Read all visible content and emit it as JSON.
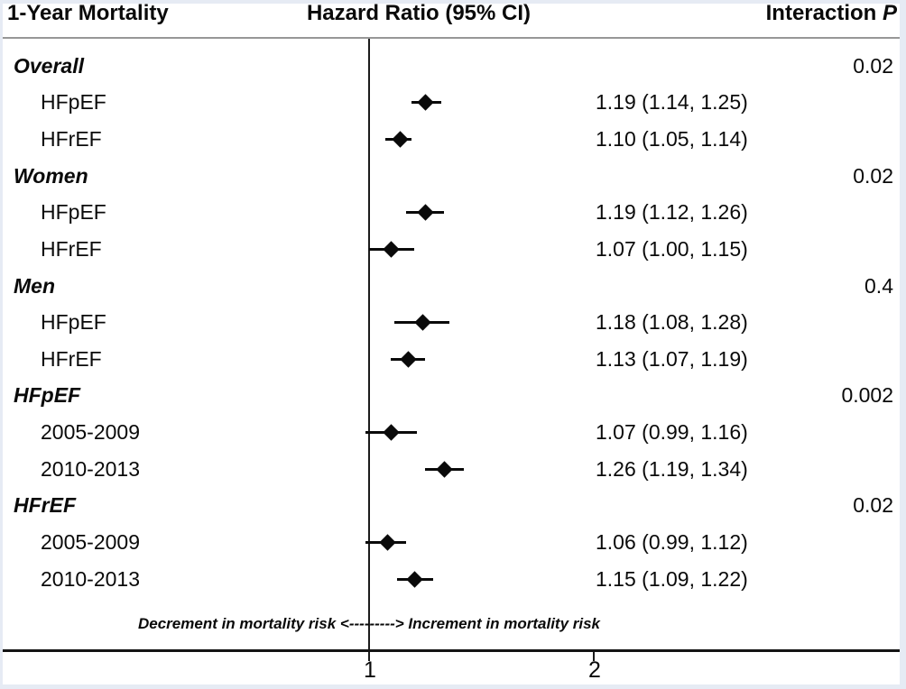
{
  "header": {
    "col1": "1-Year Mortality",
    "col2": "Hazard Ratio (95% CI)",
    "col3_prefix": "Interaction ",
    "col3_italic": "P"
  },
  "colors": {
    "text": "#0a0a0a",
    "separator_line": "#979797",
    "axis_line": "#141414",
    "border": "#e6ebf4"
  },
  "chart_data": {
    "type": "forest",
    "title": "1-Year Mortality",
    "x_axis_label": "Hazard Ratio (95% CI)",
    "p_column_label": "Interaction P",
    "x_scale": "log",
    "axis": {
      "ticks": [
        1,
        2
      ],
      "tick_labels": [
        "1",
        "2"
      ],
      "reference_value": 1
    },
    "groups": [
      {
        "label": "Overall",
        "interaction_p": "0.02",
        "items": [
          {
            "label": "HFpEF",
            "hr": 1.19,
            "ci_low": 1.14,
            "ci_high": 1.25,
            "text": "1.19 (1.14, 1.25)"
          },
          {
            "label": "HFrEF",
            "hr": 1.1,
            "ci_low": 1.05,
            "ci_high": 1.14,
            "text": "1.10 (1.05, 1.14)"
          }
        ]
      },
      {
        "label": "Women",
        "interaction_p": "0.02",
        "items": [
          {
            "label": "HFpEF",
            "hr": 1.19,
            "ci_low": 1.12,
            "ci_high": 1.26,
            "text": "1.19 (1.12, 1.26)"
          },
          {
            "label": "HFrEF",
            "hr": 1.07,
            "ci_low": 1.0,
            "ci_high": 1.15,
            "text": "1.07 (1.00, 1.15)"
          }
        ]
      },
      {
        "label": "Men",
        "interaction_p": "0.4",
        "items": [
          {
            "label": "HFpEF",
            "hr": 1.18,
            "ci_low": 1.08,
            "ci_high": 1.28,
            "text": "1.18 (1.08, 1.28)"
          },
          {
            "label": "HFrEF",
            "hr": 1.13,
            "ci_low": 1.07,
            "ci_high": 1.19,
            "text": "1.13 (1.07, 1.19)"
          }
        ]
      },
      {
        "label": "HFpEF",
        "interaction_p": "0.002",
        "items": [
          {
            "label": "2005-2009",
            "hr": 1.07,
            "ci_low": 0.99,
            "ci_high": 1.16,
            "text": "1.07 (0.99, 1.16)"
          },
          {
            "label": "2010-2013",
            "hr": 1.26,
            "ci_low": 1.19,
            "ci_high": 1.34,
            "text": "1.26 (1.19, 1.34)"
          }
        ]
      },
      {
        "label": "HFrEF",
        "interaction_p": "0.02",
        "items": [
          {
            "label": "2005-2009",
            "hr": 1.06,
            "ci_low": 0.99,
            "ci_high": 1.12,
            "text": "1.06 (0.99, 1.12)"
          },
          {
            "label": "2010-2013",
            "hr": 1.15,
            "ci_low": 1.09,
            "ci_high": 1.22,
            "text": "1.15 (1.09, 1.22)"
          }
        ]
      }
    ],
    "annotation": "Decrement in mortality risk <---------> Increment in mortality risk"
  }
}
